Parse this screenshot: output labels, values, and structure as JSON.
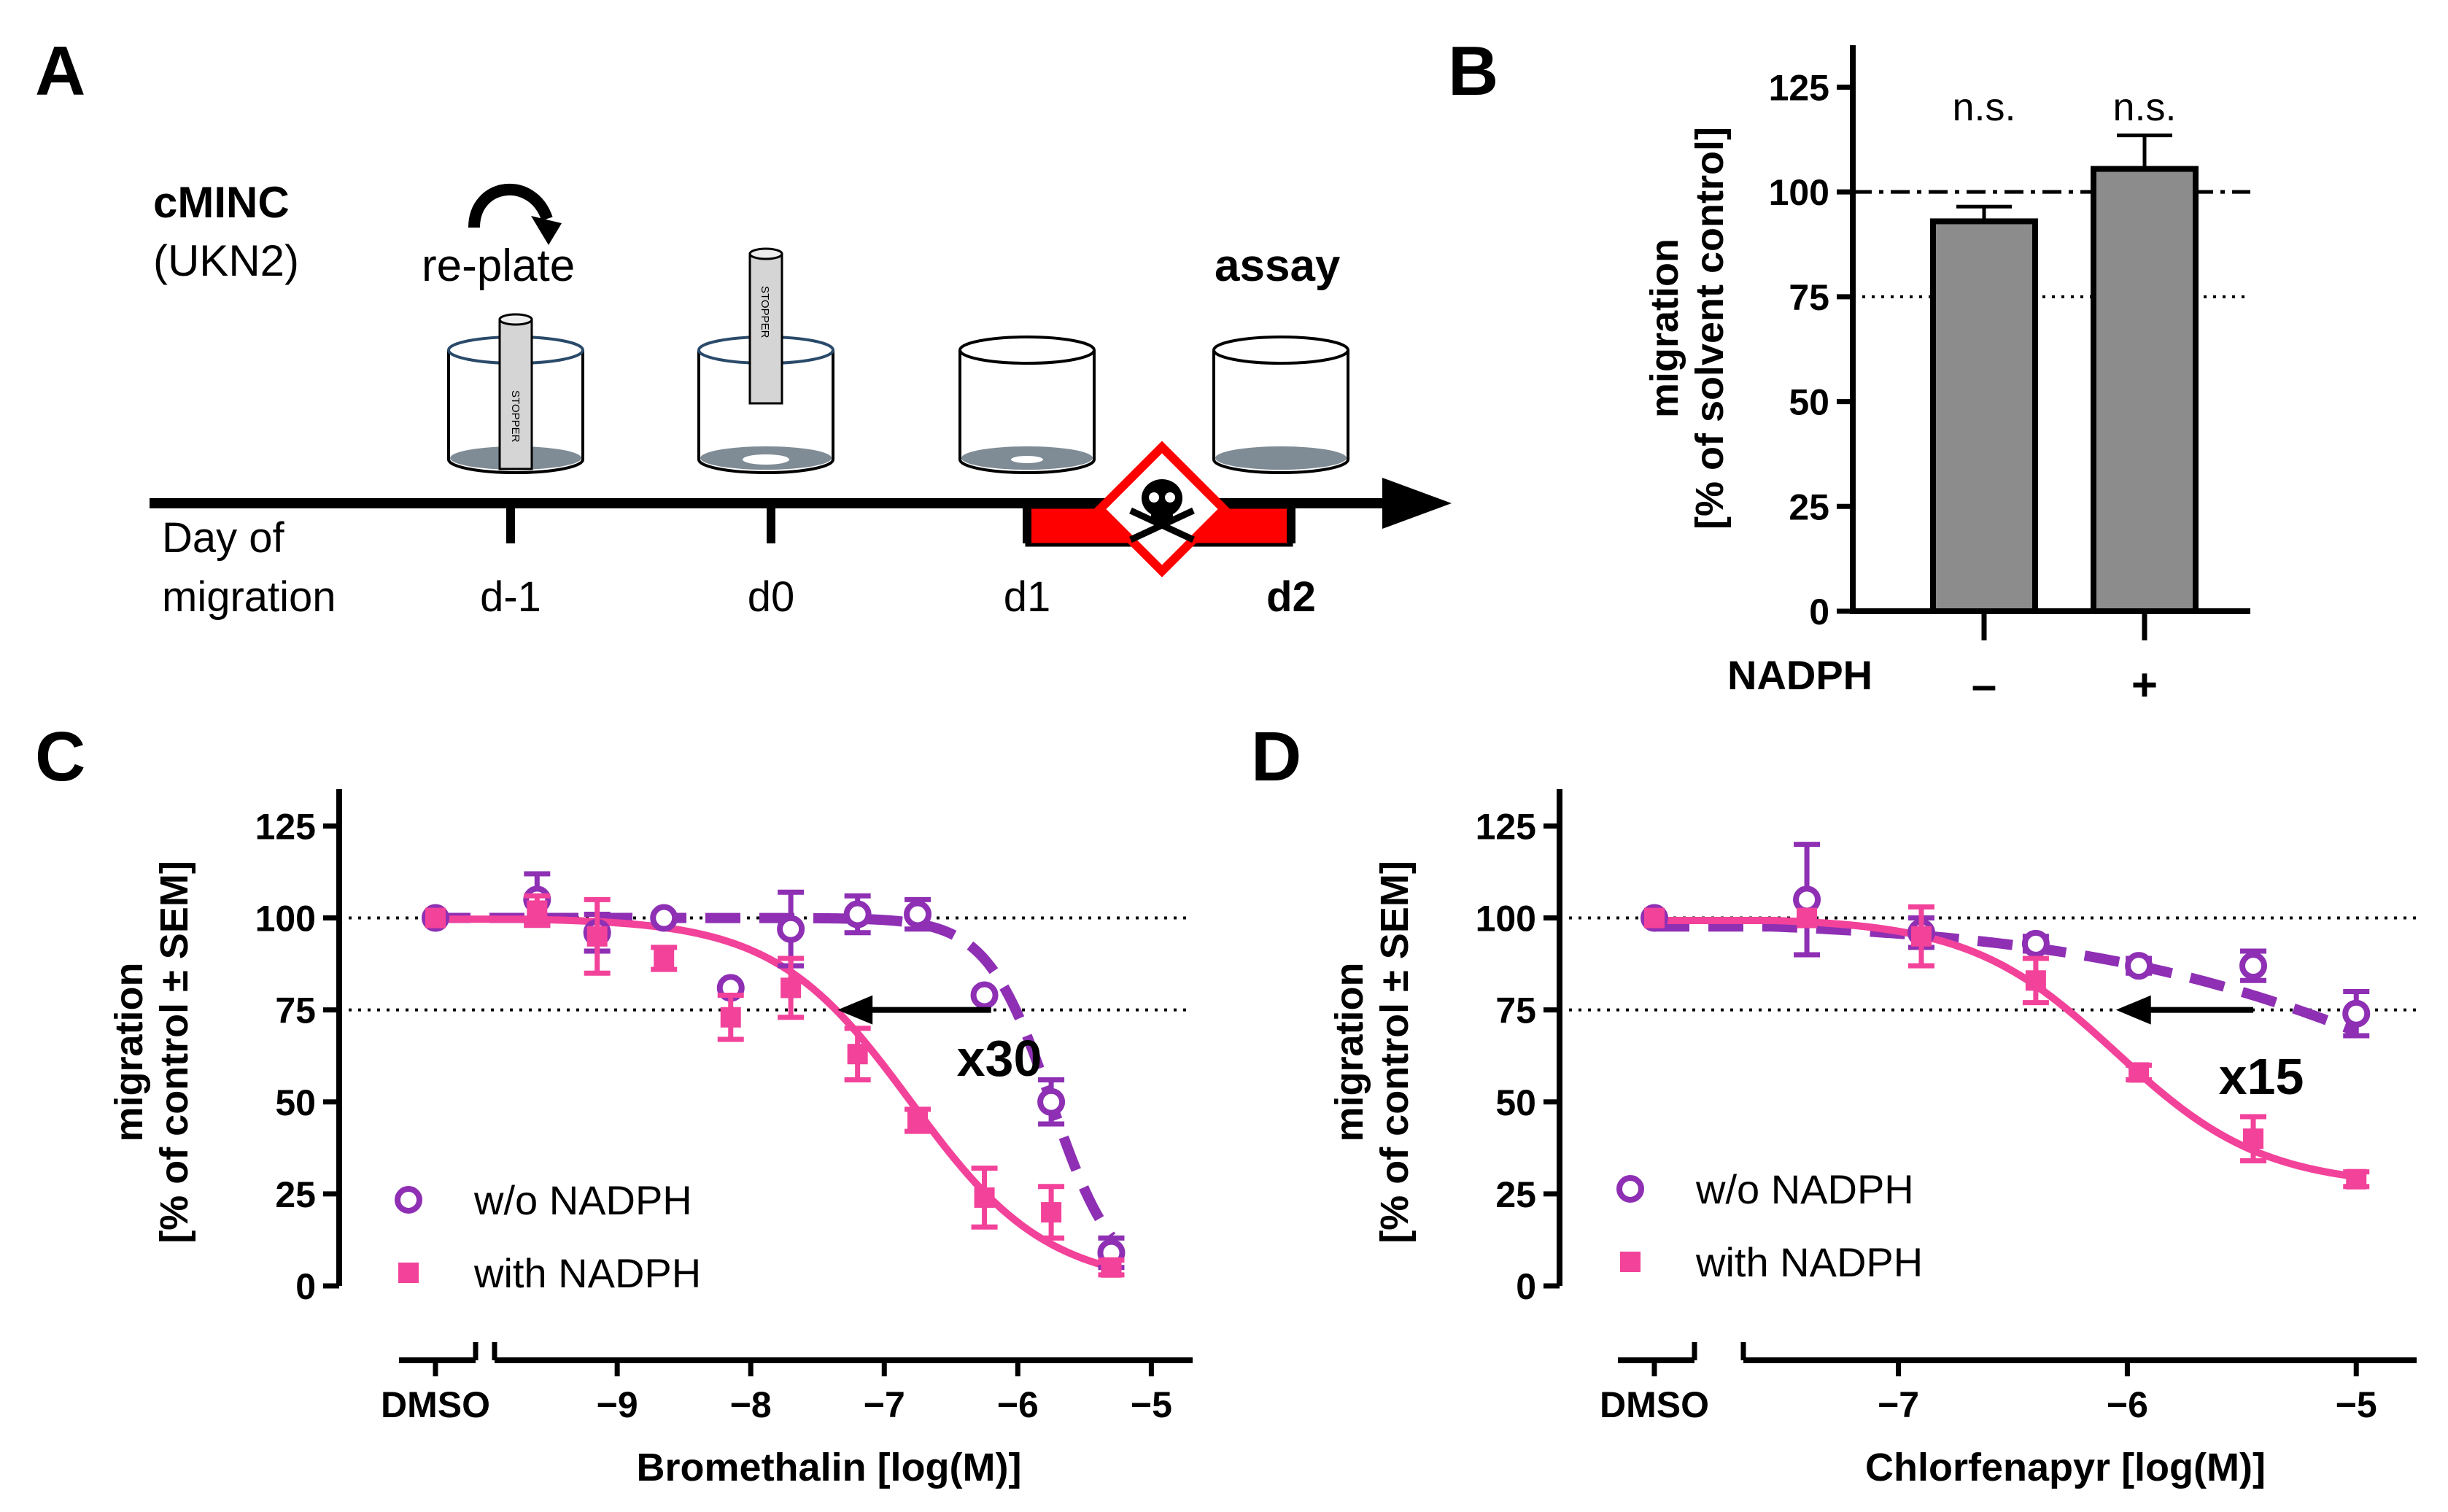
{
  "panels": {
    "a": {
      "letter": "A"
    },
    "b": {
      "letter": "B"
    },
    "c": {
      "letter": "C"
    },
    "d": {
      "letter": "D"
    }
  },
  "panel_a": {
    "cell_name": "cMINC",
    "cell_line": "(UKN2)",
    "replate_label": "re-plate",
    "assay_label": "assay",
    "stopper_text": "STOPPER",
    "timeline_title_line1": "Day of",
    "timeline_title_line2": "migration",
    "days": [
      "d-1",
      "d0",
      "d1",
      "d2"
    ],
    "toxicant_color": "#ff0000",
    "toxicant_icon": "skull-hazard-icon"
  },
  "colors": {
    "without_nadph": "#8e2fb4",
    "with_nadph": "#f2429a",
    "bar_fill": "#8c8c8c"
  },
  "chart_data": [
    {
      "id": "B",
      "type": "bar",
      "title": "",
      "ylabel_line1": "migration",
      "ylabel_line2": "[% of solvent control]",
      "xlabel": "NADPH",
      "categories": [
        "–",
        "+"
      ],
      "values": [
        93,
        105.5
      ],
      "errors": [
        3.5,
        8
      ],
      "significance": [
        "n.s.",
        "n.s."
      ],
      "ylim": [
        0,
        135
      ],
      "yticks": [
        0,
        25,
        50,
        75,
        100,
        125
      ],
      "reference_lines": [
        {
          "y": 100,
          "style": "dash-dot"
        },
        {
          "y": 75,
          "style": "dotted"
        }
      ]
    },
    {
      "id": "C",
      "type": "scatter",
      "xlabel": "Bromethalin [log(M)]",
      "ylabel_line1": "migration",
      "ylabel_line2": "[% of control ± SEM]",
      "control_label": "DMSO",
      "xlim": [
        -9.7,
        -4.8
      ],
      "xticks": [
        -9,
        -8,
        -7,
        -6,
        -5
      ],
      "xtick_labels": [
        "−9",
        "−8",
        "−7",
        "−6",
        "−5"
      ],
      "ylim": [
        0,
        135
      ],
      "yticks": [
        0,
        25,
        50,
        75,
        100,
        125
      ],
      "reference_lines": [
        100,
        75
      ],
      "shift_label": "x30",
      "arrow": {
        "from_x": -6.2,
        "to_x": -7.35,
        "y": 75
      },
      "series": [
        {
          "name": "w/o NADPH",
          "marker": "open-circle",
          "control": {
            "y": 100,
            "err": 0
          },
          "x": [
            -9.6,
            -9.15,
            -8.65,
            -8.15,
            -7.7,
            -7.2,
            -6.75,
            -6.25,
            -5.75,
            -5.3
          ],
          "y": [
            105,
            96,
            100,
            81,
            97,
            101,
            101,
            79,
            50,
            9
          ],
          "err": [
            7,
            5,
            0,
            0,
            10,
            5,
            4,
            0,
            6,
            4
          ],
          "fit": {
            "bottom": 0,
            "top": 100,
            "log_ec50": -5.75,
            "hill": 1.8
          }
        },
        {
          "name": "with NADPH",
          "marker": "filled-square",
          "control": {
            "y": 100,
            "err": 0
          },
          "x": [
            -9.6,
            -9.15,
            -8.65,
            -8.15,
            -7.7,
            -7.2,
            -6.75,
            -6.25,
            -5.75,
            -5.3
          ],
          "y": [
            102,
            95,
            89,
            73,
            81,
            63,
            45,
            24,
            20,
            5
          ],
          "err": [
            4,
            10,
            3,
            6,
            8,
            7,
            3,
            8,
            7,
            2
          ],
          "fit": {
            "bottom": 0,
            "top": 100,
            "log_ec50": -6.8,
            "hill": 0.85
          }
        }
      ]
    },
    {
      "id": "D",
      "type": "scatter",
      "xlabel": "Chlorfenapyr [log(M)]",
      "ylabel_line1": "migration",
      "ylabel_line2": "[% of control ± SEM]",
      "control_label": "DMSO",
      "xlim": [
        -7.55,
        -4.8
      ],
      "xticks": [
        -7,
        -6,
        -5
      ],
      "xtick_labels": [
        "−7",
        "−6",
        "−5"
      ],
      "ylim": [
        0,
        135
      ],
      "yticks": [
        0,
        25,
        50,
        75,
        100,
        125
      ],
      "reference_lines": [
        100,
        75
      ],
      "shift_label": "x15",
      "arrow": {
        "from_x": -5.45,
        "to_x": -6.05,
        "y": 75
      },
      "series": [
        {
          "name": "w/o NADPH",
          "marker": "open-circle",
          "control": {
            "y": 100,
            "err": 0
          },
          "x": [
            -7.4,
            -6.9,
            -6.4,
            -5.95,
            -5.45,
            -5.0
          ],
          "y": [
            105,
            96,
            93,
            87,
            87,
            74
          ],
          "err": [
            15,
            4,
            2,
            2,
            4,
            6
          ],
          "fit": {
            "bottom": 0,
            "top": 100,
            "log_ec50": -4.3,
            "hill": 0.5
          }
        },
        {
          "name": "with NADPH",
          "marker": "filled-square",
          "control": {
            "y": 100,
            "err": 0
          },
          "x": [
            -7.4,
            -6.9,
            -6.4,
            -5.95,
            -5.45,
            -5.0
          ],
          "y": [
            100,
            95,
            83,
            58,
            40,
            29
          ],
          "err": [
            0,
            8,
            6,
            2,
            6,
            2
          ],
          "fit": {
            "bottom": 27,
            "top": 100,
            "log_ec50": -6.05,
            "hill": 1.35
          }
        }
      ]
    }
  ]
}
